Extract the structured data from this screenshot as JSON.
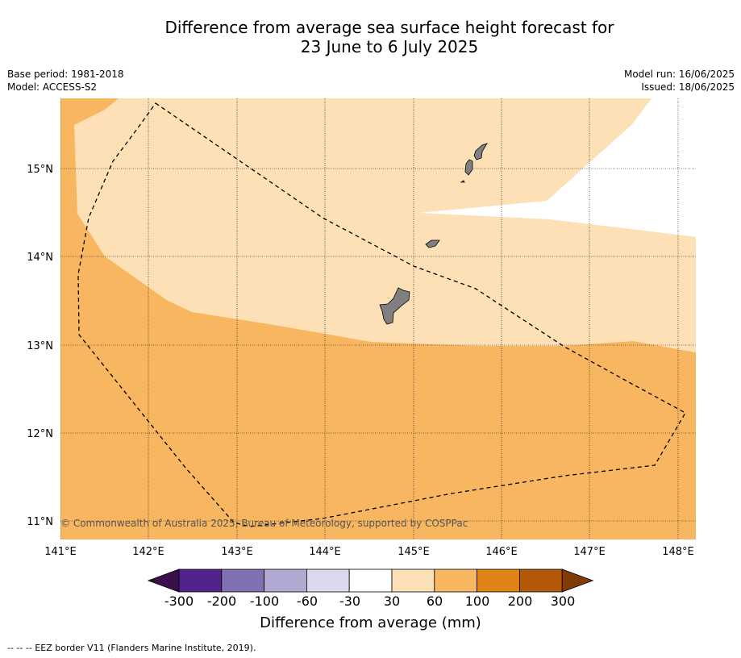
{
  "title_line1": "Difference from average sea surface height forecast for",
  "title_line2": "23 June to 6 July 2025",
  "base_period": "Base period: 1981-2018",
  "model": "Model: ACCESS-S2",
  "model_run": "Model run: 16/06/2025",
  "issued": "Issued: 18/06/2025",
  "copyright": "© Commonwealth of Australia 2025, Bureau of Meteorology, supported by COSPPac",
  "lat_labels": [
    "15°N",
    "14°N",
    "13°N",
    "12°N",
    "11°N"
  ],
  "lon_labels": [
    "141°E",
    "142°E",
    "143°E",
    "144°E",
    "145°E",
    "146°E",
    "147°E",
    "148°E"
  ],
  "colorbar": {
    "title": "Difference from average (mm)",
    "ticks": [
      "-300",
      "-200",
      "-100",
      "-60",
      "-30",
      "30",
      "60",
      "100",
      "200",
      "300"
    ],
    "colors": [
      "#3b0f4a",
      "#54228b",
      "#8271b2",
      "#b2a9d3",
      "#dadaec",
      "#ffffff",
      "#fde0b5",
      "#f9b660",
      "#e08214",
      "#b35806",
      "#7f3b08"
    ]
  },
  "footnote": "-- -- -- EEZ border V11 (Flanders Marine Institute, 2019)."
}
